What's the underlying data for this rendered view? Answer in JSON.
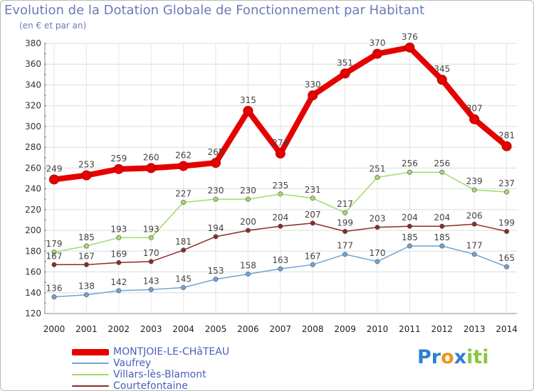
{
  "title": "Evolution de la Dotation Globale de Fonctionnement par Habitant",
  "subtitle": "(en € et par an)",
  "logo": {
    "letters": [
      {
        "char": "P",
        "color": "#2e7fd0"
      },
      {
        "char": "r",
        "color": "#2e7fd0"
      },
      {
        "char": "o",
        "color": "#f2941a"
      },
      {
        "char": "x",
        "color": "#2e7fd0"
      },
      {
        "char": "i",
        "color": "#8cc63f"
      },
      {
        "char": "t",
        "color": "#8cc63f"
      },
      {
        "char": "i",
        "color": "#8cc63f"
      }
    ]
  },
  "chart_data": {
    "type": "line",
    "categories": [
      "2000",
      "2001",
      "2002",
      "2003",
      "2004",
      "2005",
      "2006",
      "2007",
      "2008",
      "2009",
      "2010",
      "2011",
      "2012",
      "2013",
      "2014"
    ],
    "ylim": [
      120,
      380
    ],
    "yticks": [
      120,
      140,
      160,
      180,
      200,
      220,
      240,
      260,
      280,
      300,
      320,
      340,
      360,
      380
    ],
    "grid": true,
    "series": [
      {
        "name": "MONTJOIE-LE-CHâTEAU",
        "color": "#e60000",
        "values": [
          249,
          253,
          259,
          260,
          262,
          265,
          315,
          274,
          330,
          351,
          370,
          376,
          345,
          307,
          281
        ]
      },
      {
        "name": "Vaufrey",
        "color": "#6ea4d6",
        "values": [
          136,
          138,
          142,
          143,
          145,
          153,
          158,
          163,
          167,
          177,
          170,
          185,
          185,
          177,
          165
        ]
      },
      {
        "name": "Villars-lès-Blamont",
        "color": "#a6d96a",
        "values": [
          179,
          185,
          193,
          193,
          227,
          230,
          230,
          235,
          231,
          217,
          251,
          256,
          256,
          239,
          237
        ]
      },
      {
        "name": "Courtefontaine",
        "color": "#8b2b2b",
        "values": [
          167,
          167,
          169,
          170,
          181,
          194,
          200,
          204,
          207,
          199,
          203,
          204,
          204,
          206,
          199
        ]
      }
    ]
  }
}
